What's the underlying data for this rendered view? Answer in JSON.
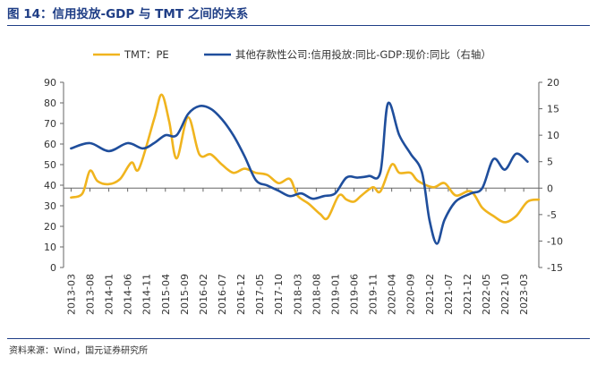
{
  "title": "图 14：信用投放-GDP 与 TMT 之间的关系",
  "source": "资料来源：Wind，国元证券研究所",
  "colors": {
    "title": "#1f3e86",
    "series_tmt": "#f0b41e",
    "series_credit": "#1f4e9c"
  },
  "chart_data": {
    "type": "line",
    "x_ticks": [
      "2013-03",
      "2013-08",
      "2014-01",
      "2014-06",
      "2014-11",
      "2015-04",
      "2015-09",
      "2016-02",
      "2016-07",
      "2016-12",
      "2017-05",
      "2017-10",
      "2018-03",
      "2018-08",
      "2019-01",
      "2019-06",
      "2019-11",
      "2020-04",
      "2020-09",
      "2021-02",
      "2021-07",
      "2021-12",
      "2022-05",
      "2022-10",
      "2023-03"
    ],
    "y_left": {
      "min": 0,
      "max": 90,
      "step": 10,
      "ticks": [
        "0",
        "10",
        "20",
        "30",
        "40",
        "50",
        "60",
        "70",
        "80",
        "90"
      ]
    },
    "y_right": {
      "min": -15,
      "max": 20,
      "step": 5,
      "ticks": [
        "-15",
        "-10",
        "-5",
        "0",
        "5",
        "10",
        "15",
        "20"
      ]
    },
    "legend_position": "top",
    "series": [
      {
        "name": "TMT：PE",
        "axis": "left",
        "color": "#f0b41e",
        "points": [
          [
            "2013-03",
            34
          ],
          [
            "2013-06",
            36
          ],
          [
            "2013-08",
            47
          ],
          [
            "2013-10",
            42
          ],
          [
            "2014-01",
            40.5
          ],
          [
            "2014-04",
            43
          ],
          [
            "2014-07",
            51
          ],
          [
            "2014-09",
            48
          ],
          [
            "2015-01",
            72
          ],
          [
            "2015-03",
            84
          ],
          [
            "2015-05",
            71
          ],
          [
            "2015-07",
            53
          ],
          [
            "2015-10",
            73
          ],
          [
            "2016-01",
            55
          ],
          [
            "2016-04",
            55
          ],
          [
            "2016-07",
            50
          ],
          [
            "2016-10",
            46
          ],
          [
            "2017-01",
            48
          ],
          [
            "2017-04",
            46
          ],
          [
            "2017-07",
            45
          ],
          [
            "2017-10",
            41
          ],
          [
            "2018-01",
            43
          ],
          [
            "2018-03",
            35
          ],
          [
            "2018-06",
            31
          ],
          [
            "2018-09",
            26
          ],
          [
            "2018-11",
            24
          ],
          [
            "2019-02",
            35
          ],
          [
            "2019-04",
            33
          ],
          [
            "2019-06",
            32
          ],
          [
            "2019-08",
            35
          ],
          [
            "2019-11",
            39
          ],
          [
            "2020-01",
            37
          ],
          [
            "2020-04",
            50
          ],
          [
            "2020-06",
            46
          ],
          [
            "2020-09",
            46
          ],
          [
            "2020-11",
            42
          ],
          [
            "2021-03",
            39
          ],
          [
            "2021-06",
            41
          ],
          [
            "2021-09",
            35
          ],
          [
            "2022-01",
            37
          ],
          [
            "2022-04",
            29
          ],
          [
            "2022-07",
            25
          ],
          [
            "2022-10",
            22
          ],
          [
            "2023-01",
            25
          ],
          [
            "2023-04",
            32
          ],
          [
            "2023-07",
            33
          ]
        ]
      },
      {
        "name": "其他存款性公司:信用投放:同比-GDP:现价:同比（右轴）",
        "axis": "right",
        "color": "#1f4e9c",
        "points": [
          [
            "2013-03",
            7.5
          ],
          [
            "2013-08",
            8.5
          ],
          [
            "2014-01",
            7
          ],
          [
            "2014-06",
            8.5
          ],
          [
            "2014-10",
            7.5
          ],
          [
            "2015-01",
            8.5
          ],
          [
            "2015-04",
            10
          ],
          [
            "2015-07",
            10
          ],
          [
            "2015-10",
            14
          ],
          [
            "2016-01",
            15.5
          ],
          [
            "2016-04",
            15
          ],
          [
            "2016-07",
            13
          ],
          [
            "2016-10",
            10
          ],
          [
            "2017-01",
            6
          ],
          [
            "2017-04",
            1.5
          ],
          [
            "2017-07",
            0.5
          ],
          [
            "2017-10",
            -0.5
          ],
          [
            "2018-01",
            -1.5
          ],
          [
            "2018-04",
            -1
          ],
          [
            "2018-07",
            -2
          ],
          [
            "2018-10",
            -1.5
          ],
          [
            "2019-01",
            -1
          ],
          [
            "2019-04",
            2
          ],
          [
            "2019-07",
            2
          ],
          [
            "2019-10",
            2.3
          ],
          [
            "2020-01",
            3
          ],
          [
            "2020-03",
            16
          ],
          [
            "2020-06",
            10
          ],
          [
            "2020-09",
            6.5
          ],
          [
            "2020-12",
            3
          ],
          [
            "2021-02",
            -6
          ],
          [
            "2021-04",
            -10.5
          ],
          [
            "2021-06",
            -6
          ],
          [
            "2021-09",
            -2.5
          ],
          [
            "2022-01",
            -1
          ],
          [
            "2022-04",
            0
          ],
          [
            "2022-07",
            5.5
          ],
          [
            "2022-10",
            3.5
          ],
          [
            "2023-01",
            6.5
          ],
          [
            "2023-04",
            5
          ]
        ]
      }
    ]
  }
}
